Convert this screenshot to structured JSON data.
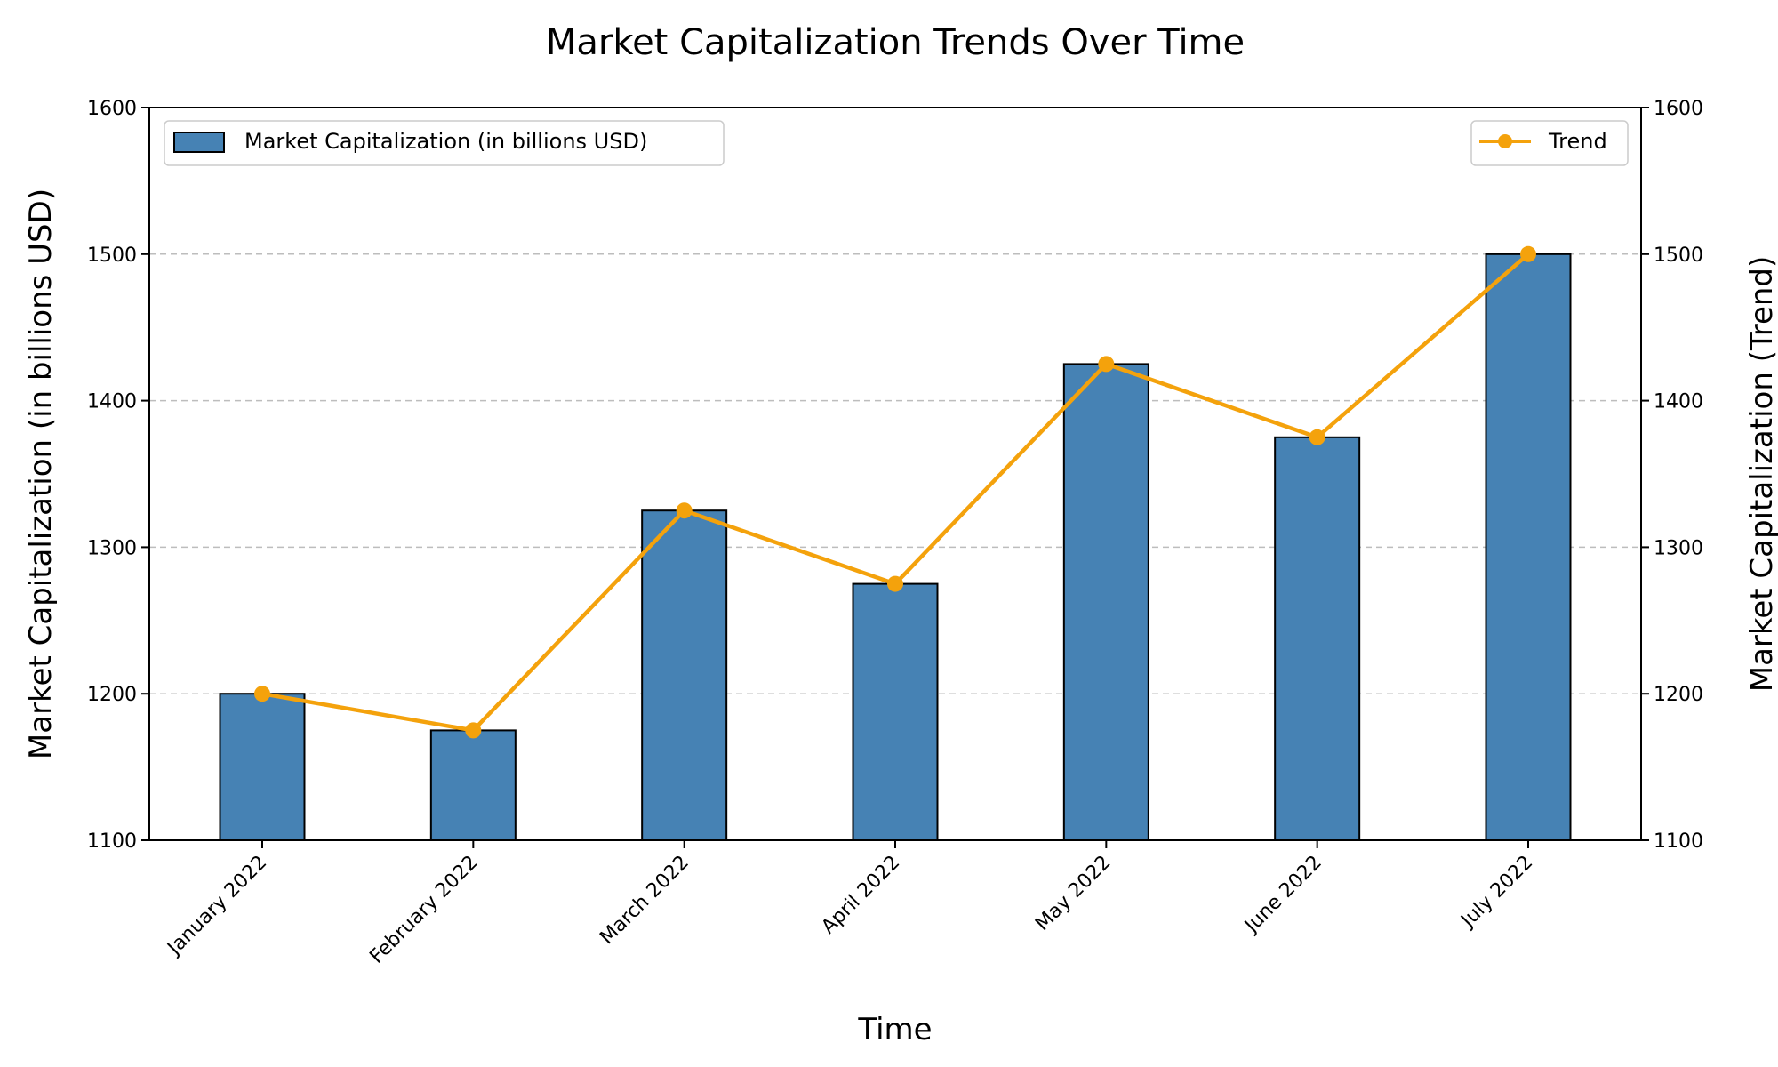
{
  "chart_data": {
    "type": "bar",
    "title": "Market Capitalization Trends Over Time",
    "xlabel": "Time",
    "ylabel": "Market Capitalization (in billions USD)",
    "ylabel_right": "Market Capitalization (Trend)",
    "categories": [
      "January 2022",
      "February 2022",
      "March 2022",
      "April 2022",
      "May 2022",
      "June 2022",
      "July 2022"
    ],
    "series": [
      {
        "name": "Market Capitalization (in billions USD)",
        "type": "bar",
        "values": [
          1200,
          1175,
          1325,
          1275,
          1425,
          1375,
          1500
        ],
        "color": "#4682b4"
      },
      {
        "name": "Trend",
        "type": "line",
        "values": [
          1200,
          1175,
          1325,
          1275,
          1425,
          1375,
          1500
        ],
        "color": "#f4a20c"
      }
    ],
    "ylim": [
      1100,
      1600
    ],
    "yticks": [
      1100,
      1200,
      1300,
      1400,
      1500,
      1600
    ],
    "grid": "horizontal dashed",
    "legend_bar_placement": "upper-left",
    "legend_line_placement": "upper-right"
  }
}
